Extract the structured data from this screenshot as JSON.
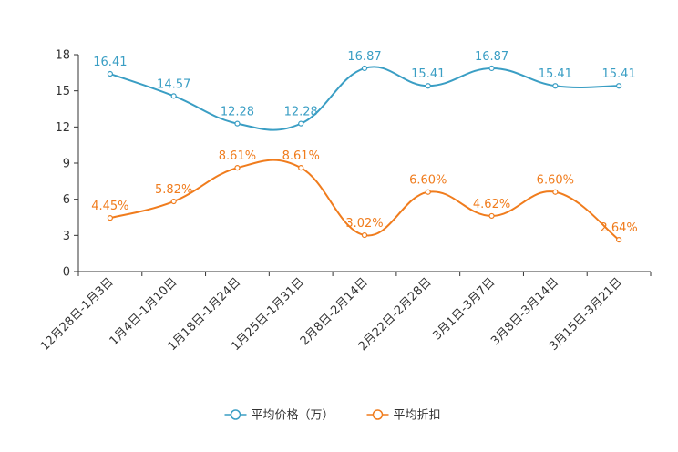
{
  "chart_data": {
    "type": "line",
    "categories": [
      "12月28日-1月3日",
      "1月4日-1月10日",
      "1月18日-1月24日",
      "1月25日-1月31日",
      "2月8日-2月14日",
      "2月22日-2月28日",
      "3月1日-3月7日",
      "3月8日-3月14日",
      "3月15日-3月21日"
    ],
    "ylim": [
      0,
      18
    ],
    "yticks": [
      "0",
      "3",
      "6",
      "9",
      "12",
      "15",
      "18"
    ],
    "series": [
      {
        "name": "平均价格（万）",
        "color": "#3a9ec4",
        "values": [
          16.41,
          14.57,
          12.28,
          12.28,
          16.87,
          15.41,
          16.87,
          15.41,
          15.41
        ],
        "labels": [
          "16.41",
          "14.57",
          "12.28",
          "12.28",
          "16.87",
          "15.41",
          "16.87",
          "15.41",
          "15.41"
        ]
      },
      {
        "name": "平均折扣",
        "color": "#f07c1d",
        "values": [
          4.45,
          5.82,
          8.61,
          8.61,
          3.02,
          6.6,
          4.62,
          6.6,
          2.64
        ],
        "labels": [
          "4.45%",
          "5.82%",
          "8.61%",
          "8.61%",
          "3.02%",
          "6.60%",
          "4.62%",
          "6.60%",
          "2.64%"
        ]
      }
    ]
  }
}
